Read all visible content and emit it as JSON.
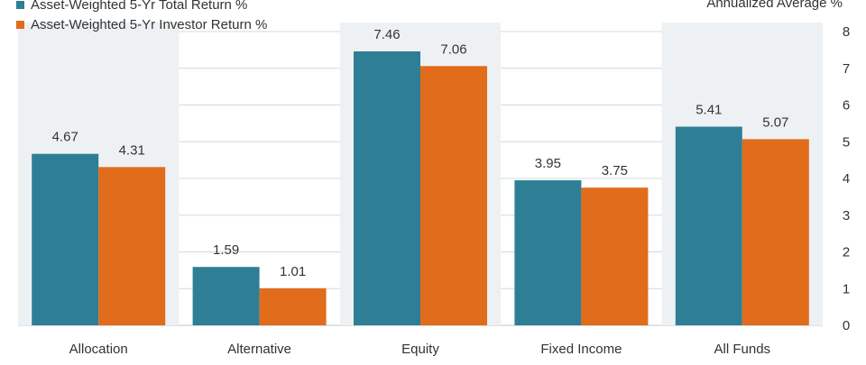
{
  "chart_data": {
    "type": "bar",
    "categories": [
      "Allocation",
      "Alternative",
      "Equity",
      "Fixed Income",
      "All Funds"
    ],
    "series": [
      {
        "name": "Asset-Weighted 5-Yr Total Return %",
        "color": "#2e7f95",
        "values": [
          4.67,
          1.59,
          7.46,
          3.95,
          5.41
        ]
      },
      {
        "name": "Asset-Weighted 5-Yr Investor Return %",
        "color": "#e06c1c",
        "values": [
          4.31,
          1.01,
          7.06,
          3.75,
          5.07
        ]
      }
    ],
    "ylabel": "Annualized Average %",
    "ylim": [
      0,
      8
    ],
    "yticks": [
      "0",
      "1",
      "2",
      "3",
      "4",
      "5",
      "6",
      "7",
      "8"
    ],
    "data_labels": [
      [
        "4.67",
        "1.59",
        "7.46",
        "3.95",
        "5.41"
      ],
      [
        "4.31",
        "1.01",
        "7.06",
        "3.75",
        "5.07"
      ]
    ],
    "grid": true,
    "legend_position": "top-left"
  }
}
